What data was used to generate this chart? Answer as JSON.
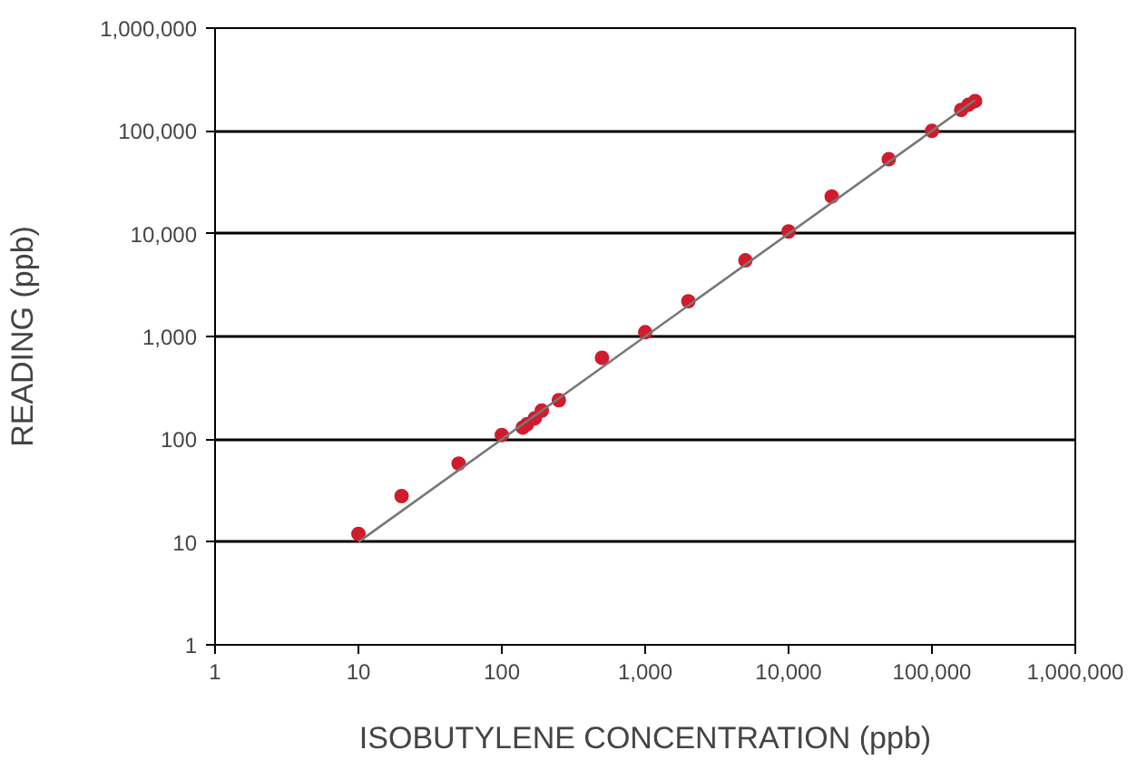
{
  "chart_data": {
    "type": "scatter",
    "xlabel": "ISOBUTYLENE CONCENTRATION (ppb)",
    "ylabel": "READING (ppb)",
    "log": "xy",
    "grid": "y",
    "xlim": [
      1,
      1000000
    ],
    "ylim": [
      1,
      1000000
    ],
    "xticks": [
      1,
      10,
      100,
      {
        "value": 1000,
        "label": "1,000"
      },
      {
        "value": 10000,
        "label": "10,000"
      },
      {
        "value": 100000,
        "label": "100,000"
      },
      {
        "value": 1000000,
        "label": "1,000,000"
      }
    ],
    "yticks": [
      1,
      10,
      100,
      {
        "value": 1000,
        "label": "1,000"
      },
      {
        "value": 10000,
        "label": "10,000"
      },
      {
        "value": 100000,
        "label": "100,000"
      },
      {
        "value": 1000000,
        "label": "1,000,000"
      }
    ],
    "series": [
      {
        "marker": "circle",
        "color": "#d01c2c",
        "x": [
          10,
          20,
          50,
          100,
          140,
          150,
          170,
          190,
          250,
          500,
          1000,
          2000,
          5000,
          10000,
          20000,
          50000,
          100000,
          160000,
          180000,
          200000
        ],
        "values": [
          12,
          28,
          58,
          110,
          130,
          140,
          160,
          190,
          240,
          620,
          1100,
          2200,
          5500,
          10500,
          23000,
          53000,
          100000,
          160000,
          180000,
          195000
        ]
      },
      {
        "type": "line",
        "marker": "none",
        "color": "#777777",
        "x": [
          10,
          200000
        ],
        "values": [
          10,
          200000
        ]
      }
    ]
  }
}
